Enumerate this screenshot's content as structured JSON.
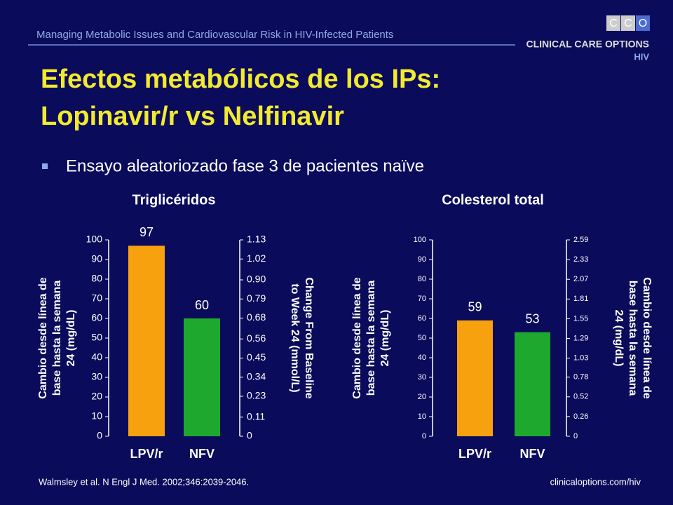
{
  "header": "Managing Metabolic Issues and Cardiovascular Risk in HIV-Infected Patients",
  "logo": {
    "letters": [
      "C",
      "C",
      "O"
    ],
    "name": "CLINICAL CARE OPTIONS",
    "sub": "HIV"
  },
  "title": [
    "Efectos metabólicos de los IPs:",
    "Lopinavir/r vs Nelfinavir"
  ],
  "bullet": "Ensayo aleatoriozado fase 3 de pacientes naïve",
  "footer": {
    "citation": "Walmsley et al. N Engl J Med. 2002;346:2039-2046.",
    "url": "clinicaloptions.com/hiv"
  },
  "chart_data": [
    {
      "type": "bar",
      "title": "Triglicéridos",
      "categories": [
        "LPV/r",
        "NFV"
      ],
      "values": [
        97,
        60
      ],
      "colors": [
        "#f7a10e",
        "#1ea82e"
      ],
      "ylim": [
        0,
        100
      ],
      "yticks": [
        0,
        10,
        20,
        30,
        40,
        50,
        60,
        70,
        80,
        90,
        100
      ],
      "y2lim": [
        0,
        1.13
      ],
      "y2ticks": [
        0,
        0.11,
        0.23,
        0.34,
        0.45,
        0.56,
        0.68,
        0.79,
        {
          "value": 0.9,
          "label": "0.90"
        },
        1.02,
        1.13
      ],
      "ylabel": [
        "Cambio desde línea de",
        "base hasta la semana",
        "24 (mg/dL)"
      ],
      "y2label": [
        "Change From Baseline",
        "to Week 24 (mmol/L)"
      ]
    },
    {
      "type": "bar",
      "title": "Colesterol total",
      "categories": [
        "LPV/r",
        "NFV"
      ],
      "values": [
        59,
        53
      ],
      "colors": [
        "#f7a10e",
        "#1ea82e"
      ],
      "ylim": [
        0,
        100
      ],
      "yticks": [
        0,
        10,
        20,
        30,
        40,
        50,
        60,
        70,
        80,
        90,
        100
      ],
      "y2lim": [
        0,
        2.59
      ],
      "y2ticks": [
        0,
        0.26,
        0.52,
        0.78,
        1.03,
        1.29,
        1.55,
        1.81,
        2.07,
        2.33,
        2.59
      ],
      "ylabel": [
        "Cambio desde línea de",
        "base hasta la semana",
        "24 (mg/dL)"
      ],
      "y2label": [
        "Cambio desde línea de",
        "base hasta la semana",
        "24 (mg/dL)"
      ]
    }
  ]
}
